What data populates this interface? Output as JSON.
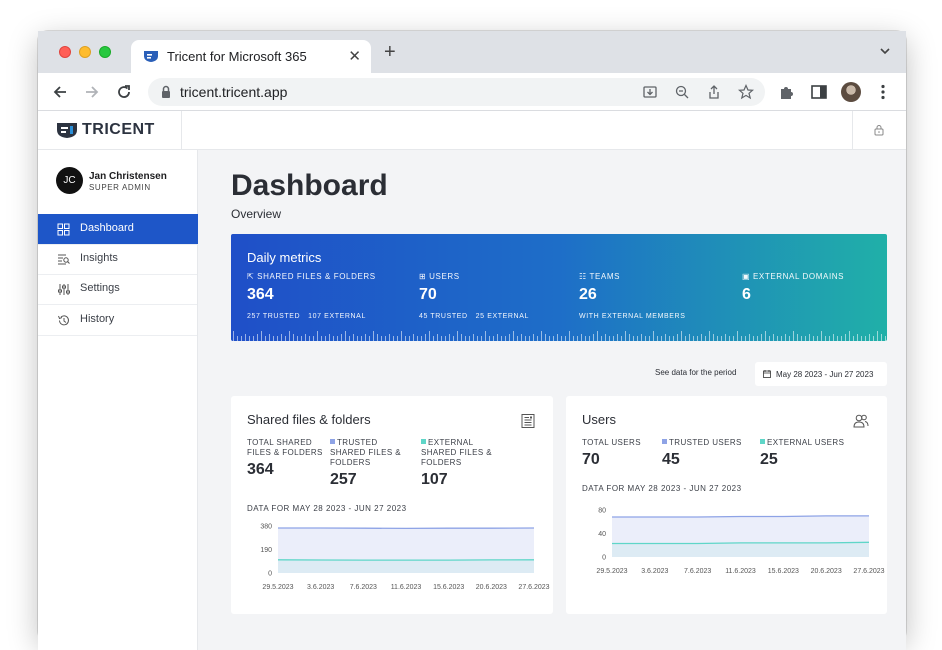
{
  "browser": {
    "tab_title": "Tricent for Microsoft 365",
    "url": "tricent.tricent.app"
  },
  "app": {
    "logo_text": "TRICENT"
  },
  "user": {
    "initials": "JC",
    "name": "Jan Christensen",
    "role": "SUPER ADMIN"
  },
  "sidebar": {
    "items": [
      {
        "label": "Dashboard",
        "icon": "grid-icon",
        "active": true
      },
      {
        "label": "Insights",
        "icon": "insights-icon",
        "active": false
      },
      {
        "label": "Settings",
        "icon": "sliders-icon",
        "active": false
      },
      {
        "label": "History",
        "icon": "history-icon",
        "active": false
      }
    ]
  },
  "page": {
    "title": "Dashboard",
    "subtitle": "Overview"
  },
  "daily_metrics": {
    "title": "Daily metrics",
    "items": [
      {
        "label": "SHARED FILES & FOLDERS",
        "value": "364",
        "sub1": "257 TRUSTED",
        "sub2": "107 EXTERNAL"
      },
      {
        "label": "USERS",
        "value": "70",
        "sub1": "45 TRUSTED",
        "sub2": "25 EXTERNAL"
      },
      {
        "label": "TEAMS",
        "value": "26",
        "sub1": "WITH EXTERNAL MEMBERS",
        "sub2": ""
      },
      {
        "label": "EXTERNAL DOMAINS",
        "value": "6",
        "sub1": "",
        "sub2": ""
      }
    ]
  },
  "period": {
    "label": "See data for the period",
    "value": "May 28 2023 - Jun 27 2023"
  },
  "colors": {
    "trusted": "#8ea3e6",
    "external": "#5fd6c8",
    "accent": "#1e56c8"
  },
  "cards": {
    "shared": {
      "title": "Shared files & folders",
      "kpis": [
        {
          "label": "TOTAL SHARED FILES & FOLDERS",
          "value": "364"
        },
        {
          "label": "TRUSTED SHARED FILES & FOLDERS",
          "value": "257"
        },
        {
          "label": "EXTERNAL SHARED FILES & FOLDERS",
          "value": "107"
        }
      ],
      "data_for": "DATA FOR MAY 28 2023 - JUN 27 2023"
    },
    "users": {
      "title": "Users",
      "kpis": [
        {
          "label": "TOTAL USERS",
          "value": "70"
        },
        {
          "label": "TRUSTED USERS",
          "value": "45"
        },
        {
          "label": "EXTERNAL USERS",
          "value": "25"
        }
      ],
      "data_for": "DATA FOR MAY 28 2023 - JUN 27 2023"
    }
  },
  "chart_data": [
    {
      "type": "area",
      "x": [
        "29.5.2023",
        "3.6.2023",
        "7.6.2023",
        "11.6.2023",
        "15.6.2023",
        "20.6.2023",
        "27.6.2023"
      ],
      "y_ticks": [
        "380",
        "190",
        "0"
      ],
      "ylim": [
        0,
        380
      ],
      "series": [
        {
          "name": "Trusted",
          "values": [
            364,
            364,
            362,
            361,
            362,
            362,
            364
          ]
        },
        {
          "name": "External",
          "values": [
            107,
            105,
            104,
            104,
            104,
            106,
            107
          ]
        }
      ]
    },
    {
      "type": "area",
      "x": [
        "29.5.2023",
        "3.6.2023",
        "7.6.2023",
        "11.6.2023",
        "15.6.2023",
        "20.6.2023",
        "27.6.2023"
      ],
      "y_ticks": [
        "80",
        "40",
        "0"
      ],
      "ylim": [
        0,
        80
      ],
      "series": [
        {
          "name": "Trusted",
          "values": [
            68,
            68,
            68,
            69,
            69,
            70,
            70
          ]
        },
        {
          "name": "External",
          "values": [
            23,
            23,
            23,
            24,
            24,
            24,
            25
          ]
        }
      ]
    }
  ]
}
